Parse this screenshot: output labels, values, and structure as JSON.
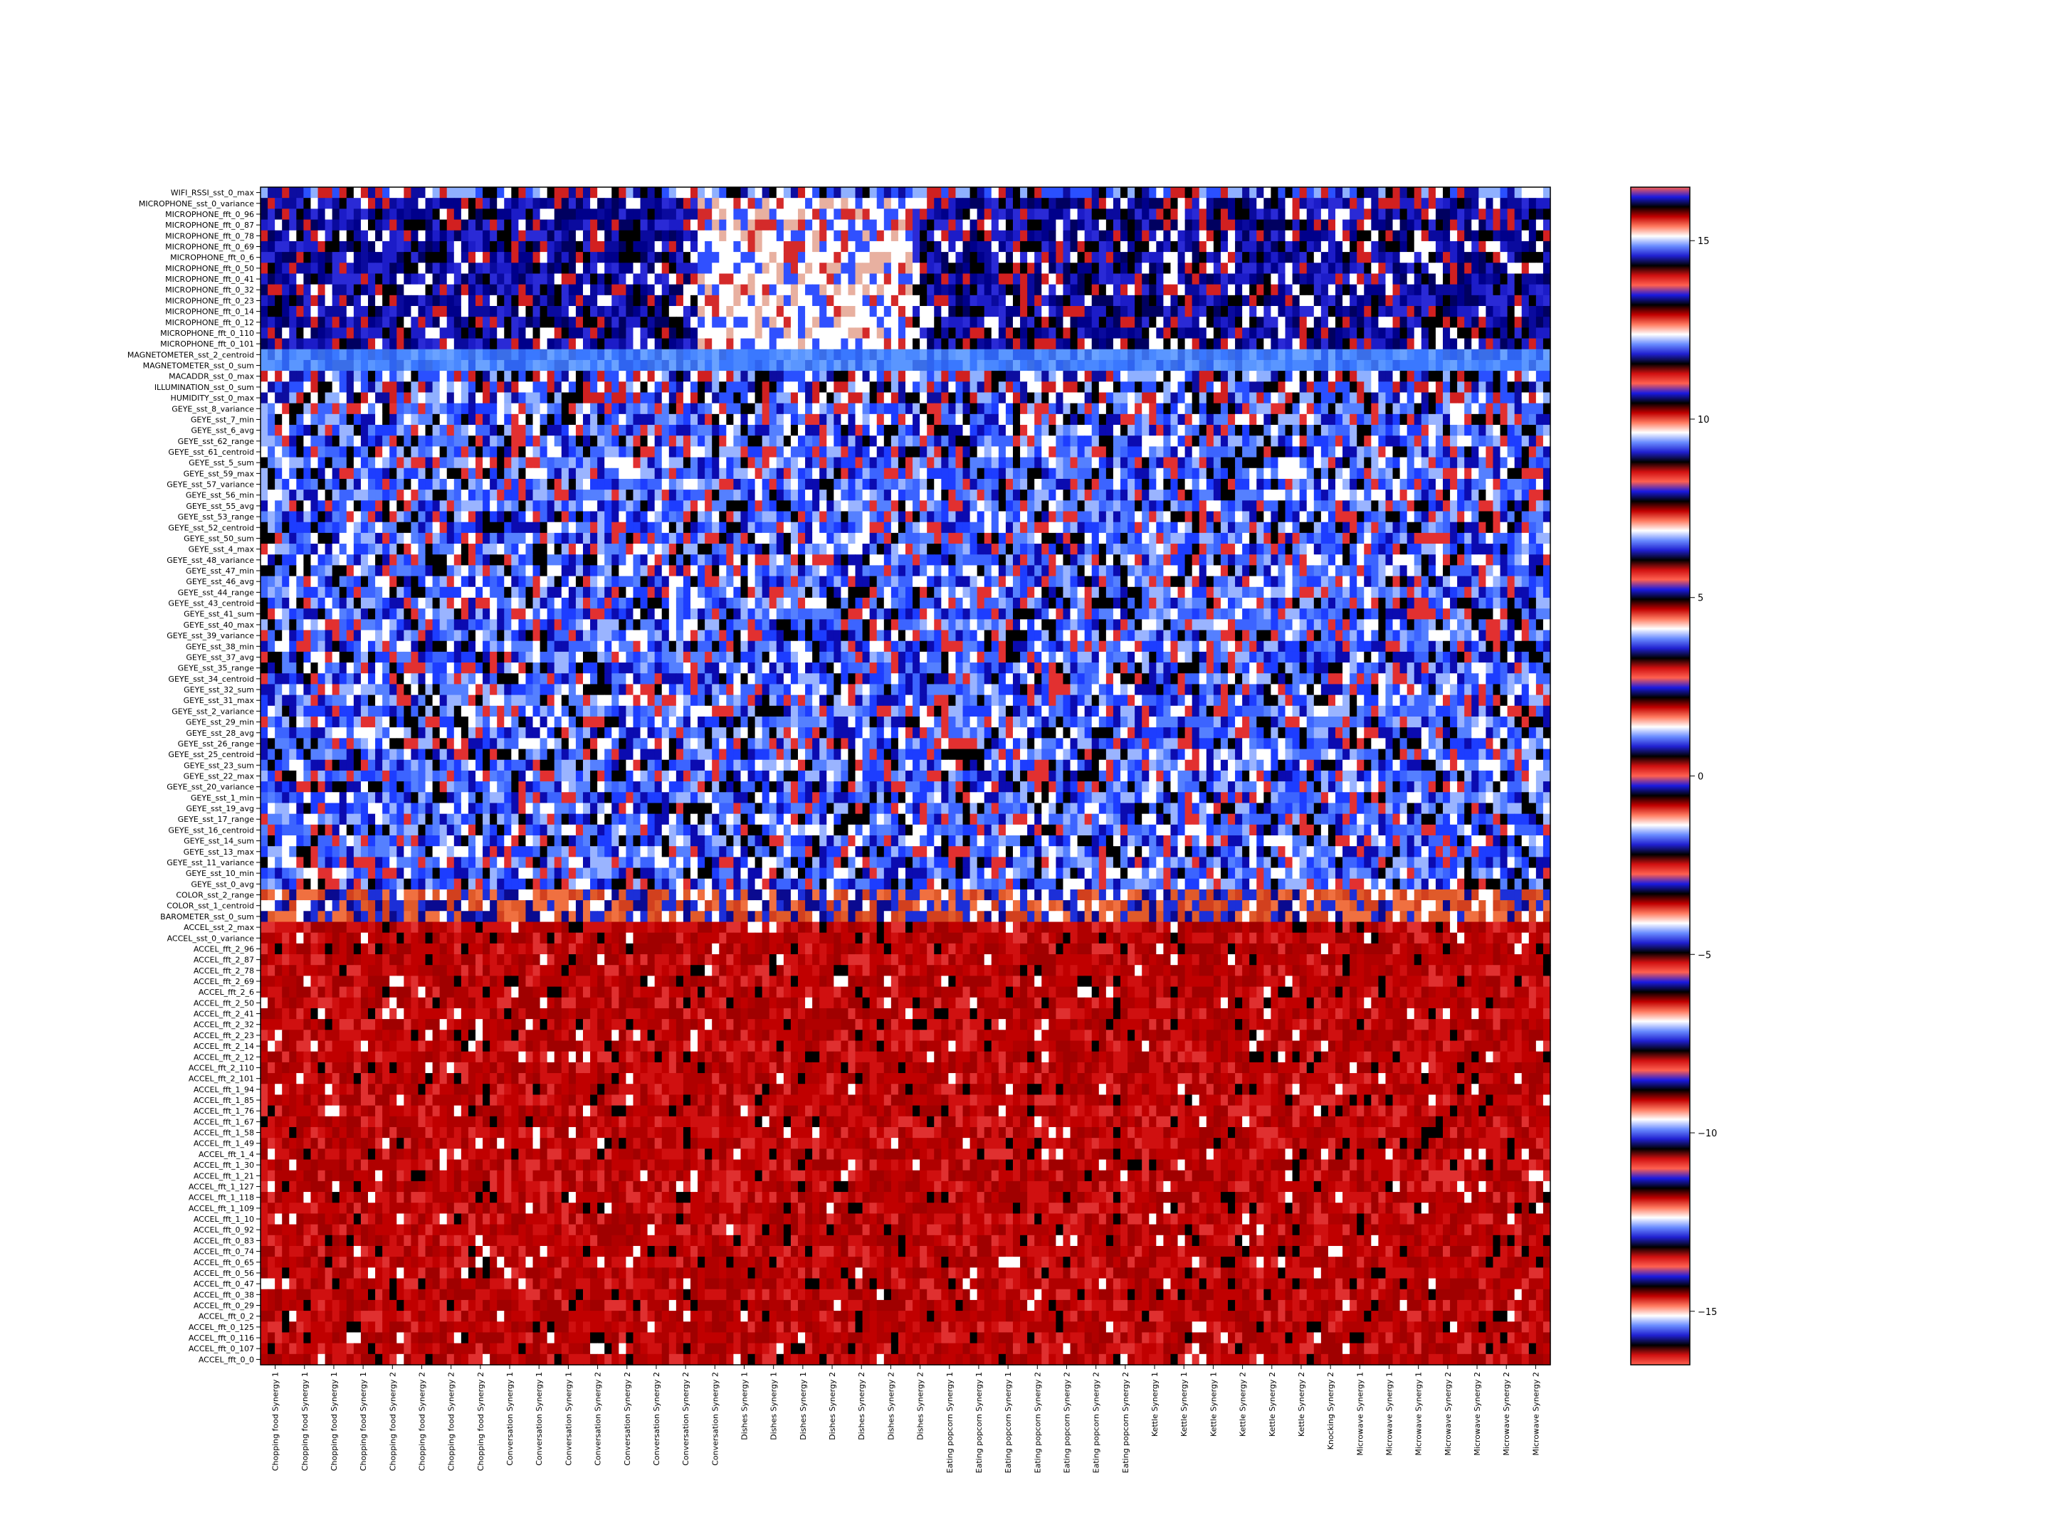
{
  "chart_data": {
    "type": "heatmap",
    "title": "",
    "xlabel": "",
    "ylabel": "",
    "row_labels": [
      "WIFI_RSSI_sst_0_max",
      "MICROPHONE_sst_0_variance",
      "MICROPHONE_fft_0_96",
      "MICROPHONE_fft_0_87",
      "MICROPHONE_fft_0_78",
      "MICROPHONE_fft_0_69",
      "MICROPHONE_fft_0_6",
      "MICROPHONE_fft_0_50",
      "MICROPHONE_fft_0_41",
      "MICROPHONE_fft_0_32",
      "MICROPHONE_fft_0_23",
      "MICROPHONE_fft_0_14",
      "MICROPHONE_fft_0_12",
      "MICROPHONE_fft_0_110",
      "MICROPHONE_fft_0_101",
      "MAGNETOMETER_sst_2_centroid",
      "MAGNETOMETER_sst_0_sum",
      "MACADDR_sst_0_max",
      "ILLUMINATION_sst_0_sum",
      "HUMIDITY_sst_0_max",
      "GEYE_sst_8_variance",
      "GEYE_sst_7_min",
      "GEYE_sst_6_avg",
      "GEYE_sst_62_range",
      "GEYE_sst_61_centroid",
      "GEYE_sst_5_sum",
      "GEYE_sst_59_max",
      "GEYE_sst_57_variance",
      "GEYE_sst_56_min",
      "GEYE_sst_55_avg",
      "GEYE_sst_53_range",
      "GEYE_sst_52_centroid",
      "GEYE_sst_50_sum",
      "GEYE_sst_4_max",
      "GEYE_sst_48_variance",
      "GEYE_sst_47_min",
      "GEYE_sst_46_avg",
      "GEYE_sst_44_range",
      "GEYE_sst_43_centroid",
      "GEYE_sst_41_sum",
      "GEYE_sst_40_max",
      "GEYE_sst_39_variance",
      "GEYE_sst_38_min",
      "GEYE_sst_37_avg",
      "GEYE_sst_35_range",
      "GEYE_sst_34_centroid",
      "GEYE_sst_32_sum",
      "GEYE_sst_31_max",
      "GEYE_sst_2_variance",
      "GEYE_sst_29_min",
      "GEYE_sst_28_avg",
      "GEYE_sst_26_range",
      "GEYE_sst_25_centroid",
      "GEYE_sst_23_sum",
      "GEYE_sst_22_max",
      "GEYE_sst_20_variance",
      "GEYE_sst_1_min",
      "GEYE_sst_19_avg",
      "GEYE_sst_17_range",
      "GEYE_sst_16_centroid",
      "GEYE_sst_14_sum",
      "GEYE_sst_13_max",
      "GEYE_sst_11_variance",
      "GEYE_sst_10_min",
      "GEYE_sst_0_avg",
      "COLOR_sst_2_range",
      "COLOR_sst_1_centroid",
      "BAROMETER_sst_0_sum",
      "ACCEL_sst_2_max",
      "ACCEL_sst_0_variance",
      "ACCEL_fft_2_96",
      "ACCEL_fft_2_87",
      "ACCEL_fft_2_78",
      "ACCEL_fft_2_69",
      "ACCEL_fft_2_6",
      "ACCEL_fft_2_50",
      "ACCEL_fft_2_41",
      "ACCEL_fft_2_32",
      "ACCEL_fft_2_23",
      "ACCEL_fft_2_14",
      "ACCEL_fft_2_12",
      "ACCEL_fft_2_110",
      "ACCEL_fft_2_101",
      "ACCEL_fft_1_94",
      "ACCEL_fft_1_85",
      "ACCEL_fft_1_76",
      "ACCEL_fft_1_67",
      "ACCEL_fft_1_58",
      "ACCEL_fft_1_49",
      "ACCEL_fft_1_4",
      "ACCEL_fft_1_30",
      "ACCEL_fft_1_21",
      "ACCEL_fft_1_127",
      "ACCEL_fft_1_118",
      "ACCEL_fft_1_109",
      "ACCEL_fft_1_10",
      "ACCEL_fft_0_92",
      "ACCEL_fft_0_83",
      "ACCEL_fft_0_74",
      "ACCEL_fft_0_65",
      "ACCEL_fft_0_56",
      "ACCEL_fft_0_47",
      "ACCEL_fft_0_38",
      "ACCEL_fft_0_29",
      "ACCEL_fft_0_2",
      "ACCEL_fft_0_125",
      "ACCEL_fft_0_116",
      "ACCEL_fft_0_107",
      "ACCEL_fft_0_0"
    ],
    "column_labels": [
      "Chopping food Synergy 1",
      "Chopping food Synergy 1",
      "Chopping food Synergy 1",
      "Chopping food Synergy 1",
      "Chopping food Synergy 2",
      "Chopping food Synergy 2",
      "Chopping food Synergy 2",
      "Chopping food Synergy 2",
      "Conversation Synergy 1",
      "Conversation Synergy 1",
      "Conversation Synergy 1",
      "Conversation Synergy 2",
      "Conversation Synergy 2",
      "Conversation Synergy 2",
      "Conversation Synergy 2",
      "Conversation Synergy 2",
      "Dishes Synergy 1",
      "Dishes Synergy 1",
      "Dishes Synergy 1",
      "Dishes Synergy 2",
      "Dishes Synergy 2",
      "Dishes Synergy 2",
      "Dishes Synergy 2",
      "Eating popcorn Synergy 1",
      "Eating popcorn Synergy 1",
      "Eating popcorn Synergy 1",
      "Eating popcorn Synergy 2",
      "Eating popcorn Synergy 2",
      "Eating popcorn Synergy 2",
      "Eating popcorn Synergy 2",
      "Kettle Synergy 1",
      "Kettle Synergy 1",
      "Kettle Synergy 1",
      "Kettle Synergy 2",
      "Kettle Synergy 2",
      "Kettle Synergy 2",
      "Knocking Synergy 2",
      "Microwave Synergy 1",
      "Microwave Synergy 1",
      "Microwave Synergy 1",
      "Microwave Synergy 2",
      "Microwave Synergy 2",
      "Microwave Synergy 2",
      "Microwave Synergy 2"
    ],
    "colorbar": {
      "range": [
        -16.5,
        16.5
      ],
      "ticks": [
        -15,
        -10,
        -5,
        0,
        5,
        10,
        15
      ],
      "tick_labels": [
        "−15",
        "−10",
        "−5",
        "0",
        "5",
        "10",
        "15"
      ],
      "colormap": "cyclic flag-like (blue / white / red / black bands)"
    },
    "grid": false,
    "legend": "colorbar-right",
    "row_groups": [
      {
        "name": "WIFI_RSSI",
        "rows": [
          0,
          0
        ],
        "tone": "mixed"
      },
      {
        "name": "MICROPHONE",
        "rows": [
          1,
          14
        ],
        "tone": "dark-blue"
      },
      {
        "name": "MAGNETOMETER",
        "rows": [
          15,
          16
        ],
        "tone": "light-blue"
      },
      {
        "name": "MACADDR / ILLUMINATION / HUMIDITY",
        "rows": [
          17,
          19
        ],
        "tone": "mixed"
      },
      {
        "name": "GEYE",
        "rows": [
          20,
          64
        ],
        "tone": "blue-mixed"
      },
      {
        "name": "COLOR / BAROMETER",
        "rows": [
          65,
          67
        ],
        "tone": "orange-mixed"
      },
      {
        "name": "ACCEL",
        "rows": [
          68,
          108
        ],
        "tone": "red"
      }
    ]
  }
}
